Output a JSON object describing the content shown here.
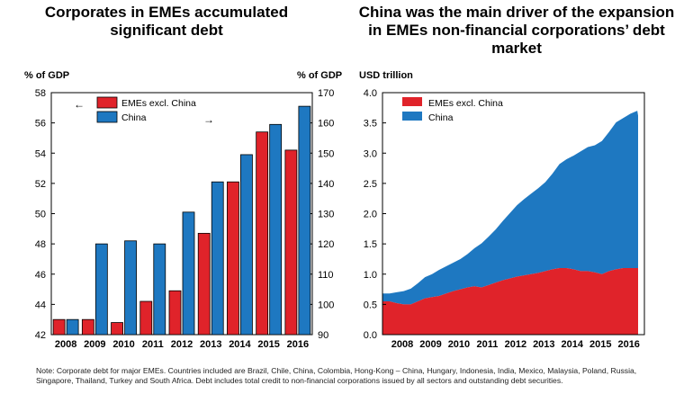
{
  "colors": {
    "red": "#e0232a",
    "blue": "#1e78c1"
  },
  "left_panel": {
    "title_line1": "Corporates in EMEs accumulated",
    "title_line2": "significant debt",
    "left_axis_label": "% of GDP",
    "right_axis_label": "% of GDP",
    "arrow_left": "←",
    "arrow_right": "→"
  },
  "right_panel": {
    "title_line1": "China was the main driver of the expansion",
    "title_line2": "in EMEs non-financial corporations’ debt",
    "title_line3": "market",
    "axis_label": "USD trillion"
  },
  "note_text": "Note: Corporate debt for major EMEs. Countries included are Brazil, Chile, China, Colombia, Hong-Kong – China, Hungary, Indonesia, India, Mexico, Malaysia, Poland, Russia, Singapore, Thailand, Turkey and South Africa. Debt includes total credit to non-financial corporations issued by all sectors and outstanding debt securities.",
  "chart_data": [
    {
      "type": "bar",
      "title": "Corporates in EMEs accumulated significant debt",
      "categories": [
        "2008",
        "2009",
        "2010",
        "2011",
        "2012",
        "2013",
        "2014",
        "2015",
        "2016"
      ],
      "series": [
        {
          "name": "EMEs excl. China",
          "axis": "left",
          "values": [
            43.0,
            43.0,
            42.8,
            44.2,
            44.9,
            48.7,
            52.1,
            55.4,
            54.2
          ]
        },
        {
          "name": "China",
          "axis": "right",
          "values": [
            95,
            120,
            121,
            120,
            130.5,
            140.5,
            149.5,
            159.5,
            165.5
          ]
        }
      ],
      "y_left": {
        "label": "% of GDP",
        "lim": [
          42,
          58
        ],
        "ticks": [
          42,
          44,
          46,
          48,
          50,
          52,
          54,
          56,
          58
        ]
      },
      "y_right": {
        "label": "% of GDP",
        "lim": [
          90,
          170
        ],
        "ticks": [
          90,
          100,
          110,
          120,
          130,
          140,
          150,
          160,
          170
        ]
      },
      "legend": "top-left",
      "grid": false
    },
    {
      "type": "area",
      "stacked": true,
      "title": "China was the main driver of the expansion in EMEs non-financial corporations’ debt market",
      "x_ticks": [
        "2008",
        "2009",
        "2010",
        "2011",
        "2012",
        "2013",
        "2014",
        "2015",
        "2016"
      ],
      "x_range": [
        2007.75,
        2017.0
      ],
      "ylabel": "USD trillion",
      "ylim": [
        0,
        4.0
      ],
      "y_ticks": [
        "0.0",
        "0.5",
        "1.0",
        "1.5",
        "2.0",
        "2.5",
        "3.0",
        "3.5",
        "4.0"
      ],
      "x": [
        2007.75,
        2008.0,
        2008.25,
        2008.5,
        2008.75,
        2009.0,
        2009.25,
        2009.5,
        2009.75,
        2010.0,
        2010.25,
        2010.5,
        2010.75,
        2011.0,
        2011.25,
        2011.5,
        2011.75,
        2012.0,
        2012.25,
        2012.5,
        2012.75,
        2013.0,
        2013.25,
        2013.5,
        2013.75,
        2014.0,
        2014.25,
        2014.5,
        2014.75,
        2015.0,
        2015.25,
        2015.5,
        2015.75,
        2016.0,
        2016.25,
        2016.5,
        2016.75,
        2017.0
      ],
      "series": [
        {
          "name": "EMEs excl. China",
          "values": [
            0.55,
            0.55,
            0.52,
            0.5,
            0.5,
            0.55,
            0.6,
            0.62,
            0.64,
            0.68,
            0.72,
            0.75,
            0.78,
            0.8,
            0.78,
            0.82,
            0.86,
            0.9,
            0.93,
            0.96,
            0.98,
            1.0,
            1.02,
            1.05,
            1.08,
            1.1,
            1.1,
            1.08,
            1.05,
            1.05,
            1.03,
            1.0,
            1.05,
            1.08,
            1.1,
            1.1,
            1.1,
            1.1
          ]
        },
        {
          "name": "China",
          "values": [
            0.13,
            0.13,
            0.18,
            0.22,
            0.26,
            0.3,
            0.35,
            0.38,
            0.43,
            0.45,
            0.47,
            0.5,
            0.55,
            0.63,
            0.73,
            0.8,
            0.88,
            0.98,
            1.08,
            1.18,
            1.26,
            1.33,
            1.4,
            1.47,
            1.58,
            1.72,
            1.8,
            1.88,
            1.98,
            2.05,
            2.1,
            2.2,
            2.3,
            2.43,
            2.48,
            2.55,
            2.6,
            2.52
          ]
        }
      ],
      "legend": "top-left",
      "grid": false
    }
  ]
}
